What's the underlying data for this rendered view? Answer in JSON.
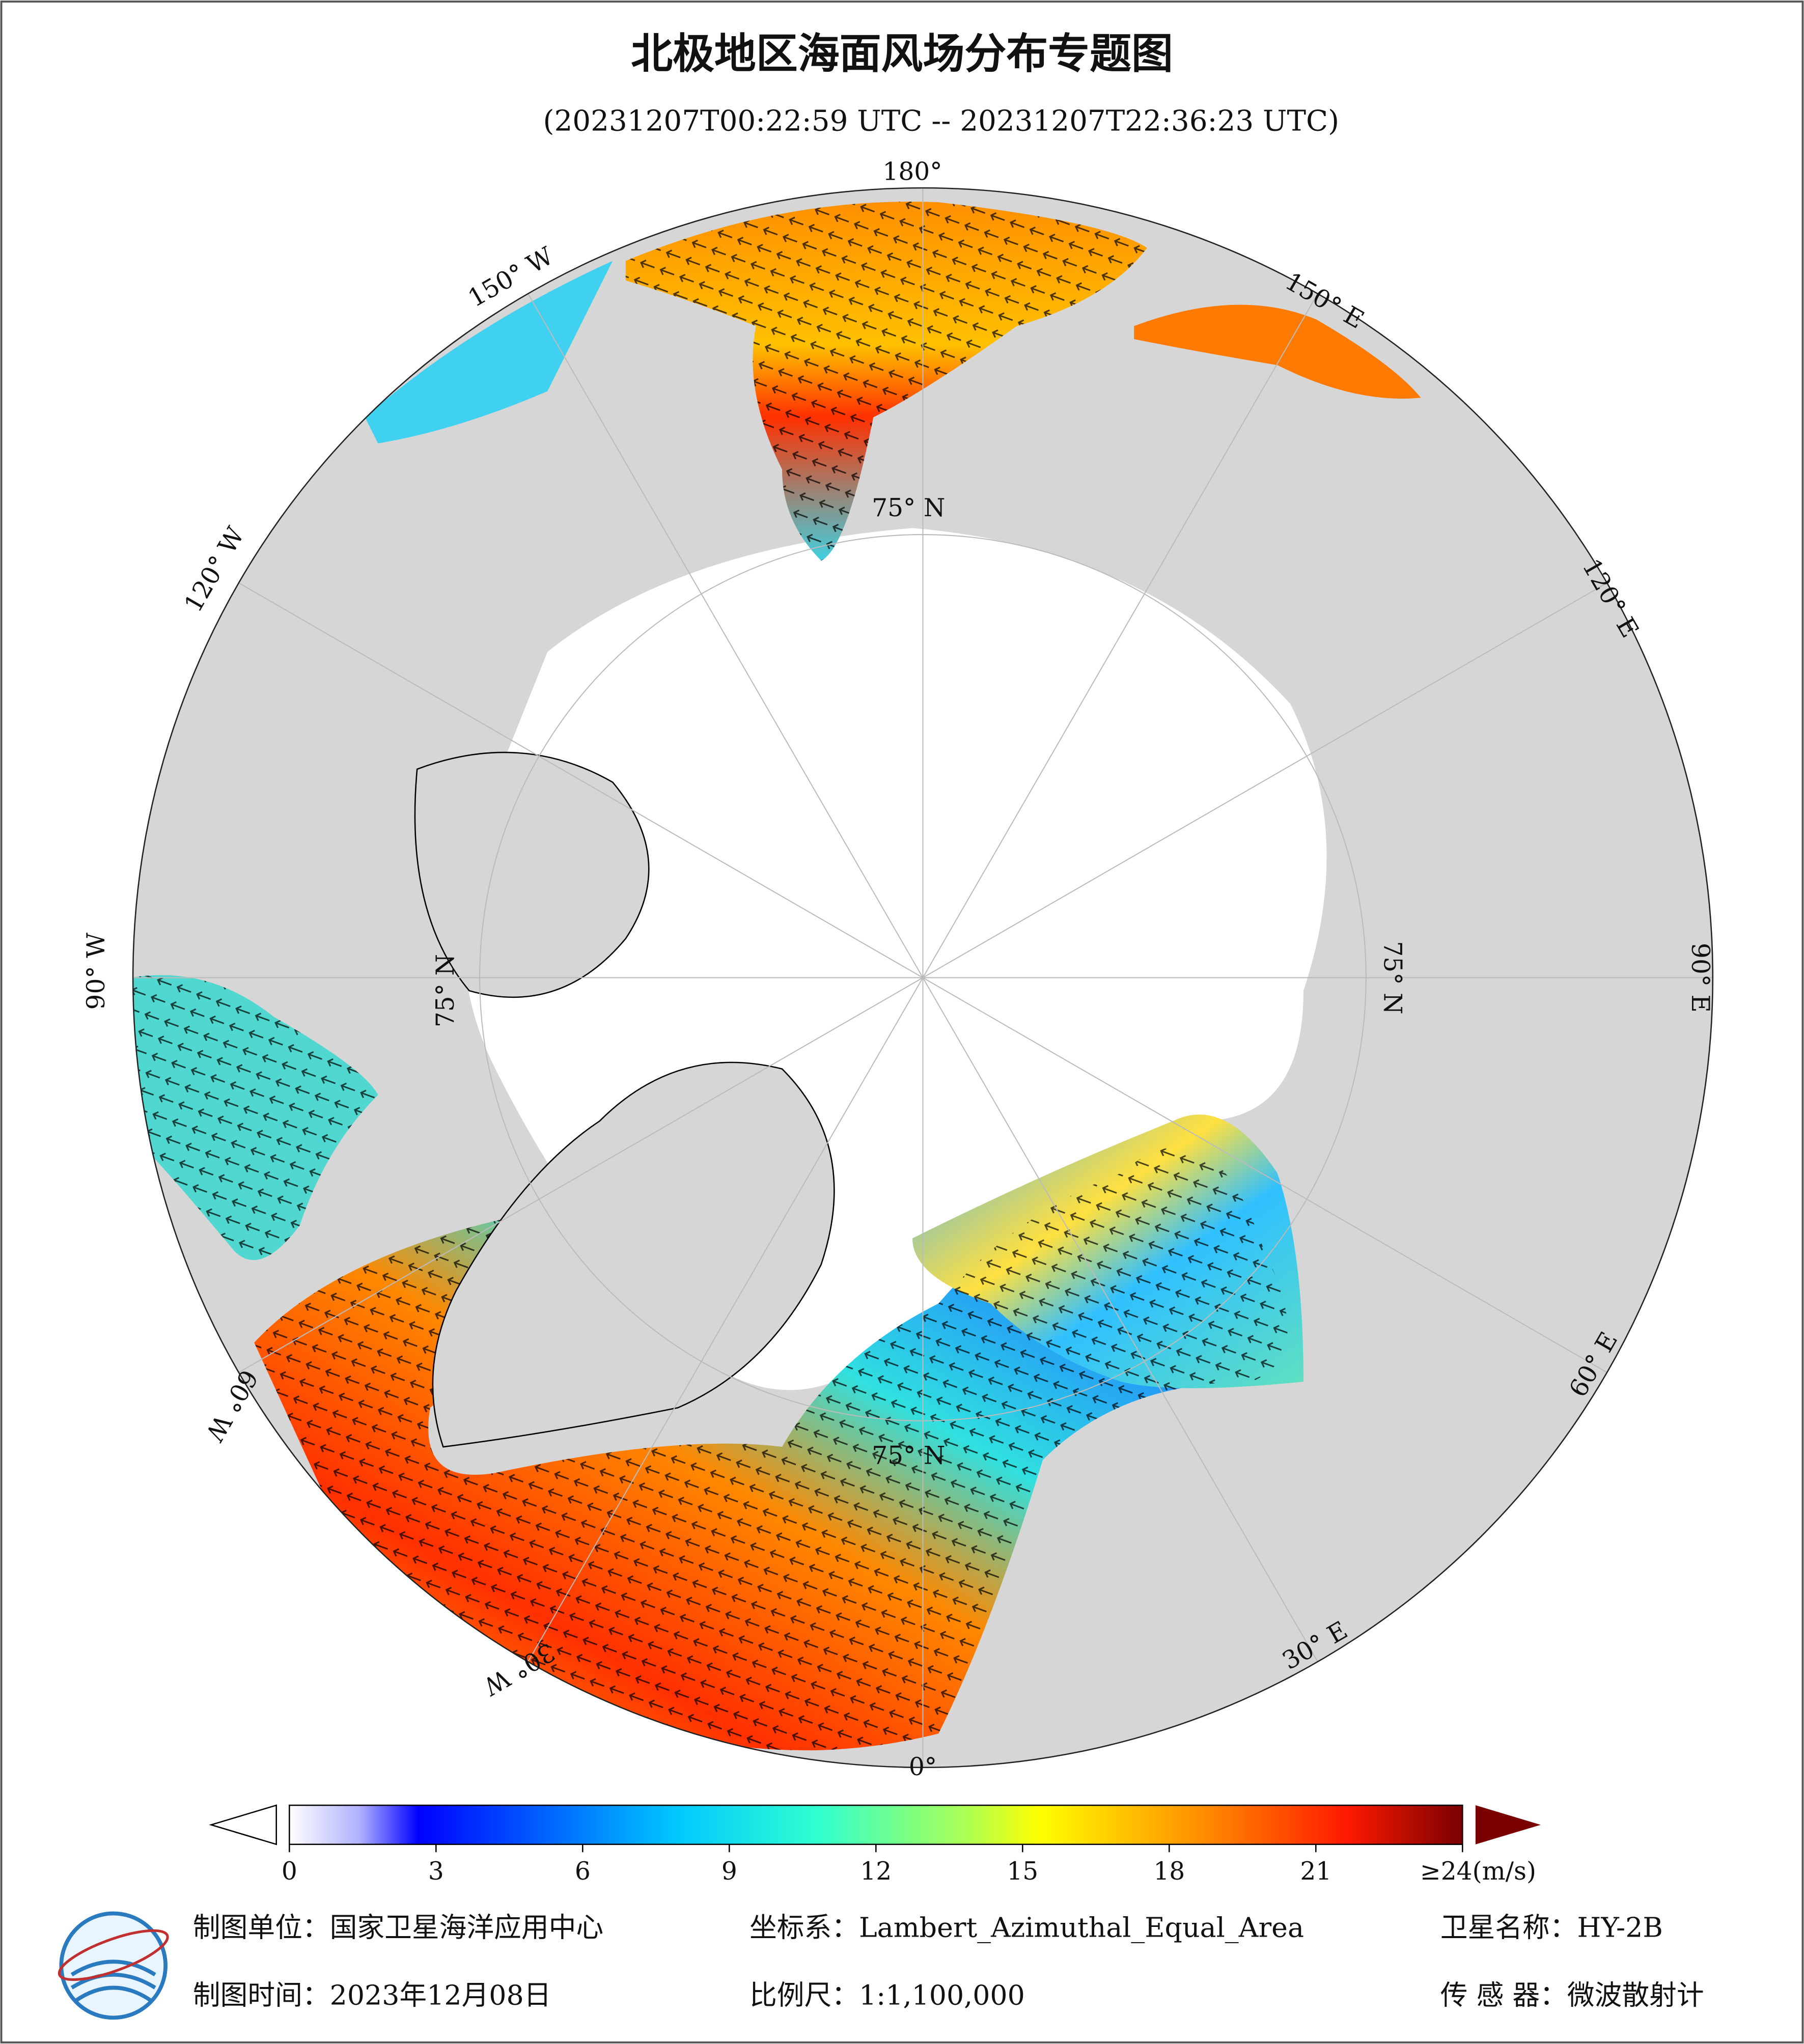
{
  "title": "北极地区海面风场分布专题图",
  "subtitle": "(20231207T00:22:59 UTC -- 20231207T22:36:23 UTC)",
  "map": {
    "meridian_labels": [
      "180°",
      "150° W",
      "120° W",
      "90° W",
      "60° W",
      "30° W",
      "0°",
      "30° E",
      "60° E",
      "90° E",
      "120° E",
      "150° E"
    ],
    "latitude_labels": [
      "75° N",
      "75° N",
      "75° N",
      "75° N"
    ]
  },
  "colorbar": {
    "range": [
      0,
      24
    ],
    "ticks": [
      0,
      3,
      6,
      9,
      12,
      15,
      18,
      21,
      {
        "value": 24,
        "label": "≥24(m/s)"
      }
    ]
  },
  "footer": [
    "制图单位：国家卫星海洋应用中心",
    "坐标系：Lambert_Azimuthal_Equal_Area",
    "卫星名称：HY-2B",
    "制图时间：2023年12月08日",
    "比例尺：1:1,100,000",
    "传 感 器：微波散射计"
  ]
}
